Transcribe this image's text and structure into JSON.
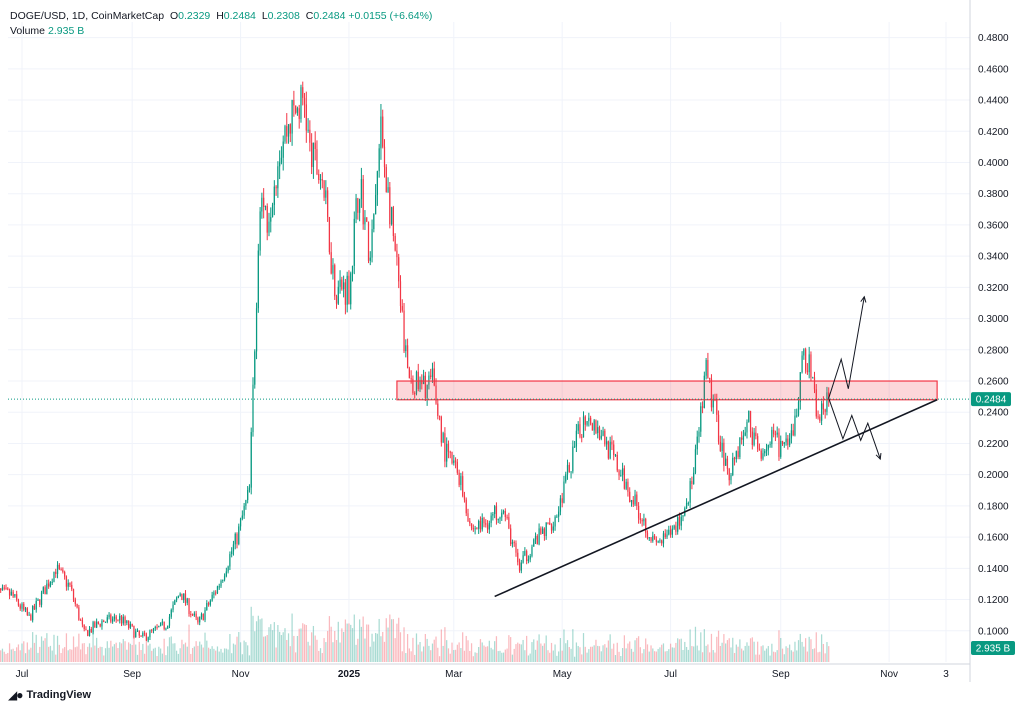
{
  "header": {
    "symbol": "DOGE/USD, 1D, CoinMarketCap",
    "o_label": "O",
    "o": "0.2329",
    "h_label": "H",
    "h": "0.2484",
    "l_label": "L",
    "l": "0.2308",
    "c_label": "C",
    "c": "0.2484",
    "change": "+0.0155 (+6.64%)",
    "volume_label": "Volume",
    "volume": "2.935 B"
  },
  "brand": "TradingView",
  "colors": {
    "up": "#089981",
    "down": "#f23645",
    "zone": "#f23645",
    "trend": "#131722",
    "grid": "#f0f3fa",
    "axis_text": "#131722"
  },
  "chart_data": {
    "type": "candlestick",
    "y_axis": {
      "min": 0.08,
      "max": 0.49,
      "ticks": [
        "0.1000",
        "0.1200",
        "0.1400",
        "0.1600",
        "0.1800",
        "0.2000",
        "0.2200",
        "0.2400",
        "0.2600",
        "0.2800",
        "0.3000",
        "0.3200",
        "0.3400",
        "0.3600",
        "0.3800",
        "0.4000",
        "0.4200",
        "0.4400",
        "0.4600",
        "0.4800"
      ]
    },
    "x_axis": {
      "ticks": [
        {
          "label": "Jul",
          "date": "2024-07-01"
        },
        {
          "label": "Sep",
          "date": "2024-09-01"
        },
        {
          "label": "Nov",
          "date": "2024-11-01"
        },
        {
          "label": "2025",
          "date": "2025-01-01"
        },
        {
          "label": "Mar",
          "date": "2025-03-01"
        },
        {
          "label": "May",
          "date": "2025-05-01"
        },
        {
          "label": "Jul",
          "date": "2025-07-01"
        },
        {
          "label": "Sep",
          "date": "2025-09-01"
        },
        {
          "label": "Nov",
          "date": "2025-11-01"
        },
        {
          "label": "3",
          "date": "2025-12-03"
        }
      ]
    },
    "date_range": [
      "2024-06-15",
      "2025-09-28"
    ],
    "last_price_label": "0.2484",
    "volume_label": "2.935 B",
    "price_path": [
      [
        "2024-06-15",
        0.125
      ],
      [
        "2024-06-25",
        0.123
      ],
      [
        "2024-07-05",
        0.108
      ],
      [
        "2024-07-10",
        0.118
      ],
      [
        "2024-07-20",
        0.14
      ],
      [
        "2024-07-28",
        0.128
      ],
      [
        "2024-08-05",
        0.098
      ],
      [
        "2024-08-15",
        0.106
      ],
      [
        "2024-08-25",
        0.108
      ],
      [
        "2024-09-06",
        0.095
      ],
      [
        "2024-09-20",
        0.104
      ],
      [
        "2024-09-28",
        0.125
      ],
      [
        "2024-10-08",
        0.104
      ],
      [
        "2024-10-20",
        0.13
      ],
      [
        "2024-10-30",
        0.16
      ],
      [
        "2024-11-06",
        0.19
      ],
      [
        "2024-11-12",
        0.38
      ],
      [
        "2024-11-16",
        0.365
      ],
      [
        "2024-11-23",
        0.41
      ],
      [
        "2024-11-30",
        0.43
      ],
      [
        "2024-12-07",
        0.44
      ],
      [
        "2024-12-10",
        0.405
      ],
      [
        "2024-12-17",
        0.39
      ],
      [
        "2024-12-24",
        0.32
      ],
      [
        "2025-01-01",
        0.32
      ],
      [
        "2025-01-07",
        0.39
      ],
      [
        "2025-01-13",
        0.335
      ],
      [
        "2025-01-19",
        0.42
      ],
      [
        "2025-01-27",
        0.34
      ],
      [
        "2025-02-03",
        0.265
      ],
      [
        "2025-02-10",
        0.255
      ],
      [
        "2025-02-17",
        0.26
      ],
      [
        "2025-02-24",
        0.215
      ],
      [
        "2025-03-04",
        0.2
      ],
      [
        "2025-03-11",
        0.165
      ],
      [
        "2025-03-20",
        0.17
      ],
      [
        "2025-03-28",
        0.18
      ],
      [
        "2025-04-07",
        0.14
      ],
      [
        "2025-04-14",
        0.155
      ],
      [
        "2025-04-22",
        0.165
      ],
      [
        "2025-04-28",
        0.175
      ],
      [
        "2025-05-10",
        0.225
      ],
      [
        "2025-05-15",
        0.24
      ],
      [
        "2025-05-24",
        0.225
      ],
      [
        "2025-06-03",
        0.2
      ],
      [
        "2025-06-12",
        0.18
      ],
      [
        "2025-06-22",
        0.155
      ],
      [
        "2025-06-30",
        0.16
      ],
      [
        "2025-07-08",
        0.175
      ],
      [
        "2025-07-14",
        0.2
      ],
      [
        "2025-07-21",
        0.265
      ],
      [
        "2025-07-26",
        0.24
      ],
      [
        "2025-08-02",
        0.2
      ],
      [
        "2025-08-09",
        0.22
      ],
      [
        "2025-08-14",
        0.235
      ],
      [
        "2025-08-19",
        0.215
      ],
      [
        "2025-08-27",
        0.222
      ],
      [
        "2025-09-05",
        0.215
      ],
      [
        "2025-09-10",
        0.24
      ],
      [
        "2025-09-14",
        0.28
      ],
      [
        "2025-09-18",
        0.265
      ],
      [
        "2025-09-22",
        0.235
      ],
      [
        "2025-09-28",
        0.2484
      ]
    ],
    "annotations": {
      "resistance_zone": {
        "from": "2025-01-28",
        "to": "2025-11-28",
        "low": 0.248,
        "high": 0.26
      },
      "trendline": {
        "from": [
          "2025-03-24",
          0.122
        ],
        "to": [
          "2025-11-28",
          0.248
        ]
      },
      "up_path": [
        [
          "2025-09-28",
          0.249
        ],
        [
          "2025-10-05",
          0.274
        ],
        [
          "2025-10-09",
          0.255
        ],
        [
          "2025-10-18",
          0.314
        ]
      ],
      "down_path": [
        [
          "2025-09-28",
          0.249
        ],
        [
          "2025-10-06",
          0.223
        ],
        [
          "2025-10-11",
          0.238
        ],
        [
          "2025-10-16",
          0.222
        ],
        [
          "2025-10-20",
          0.233
        ],
        [
          "2025-10-27",
          0.21
        ]
      ]
    }
  }
}
